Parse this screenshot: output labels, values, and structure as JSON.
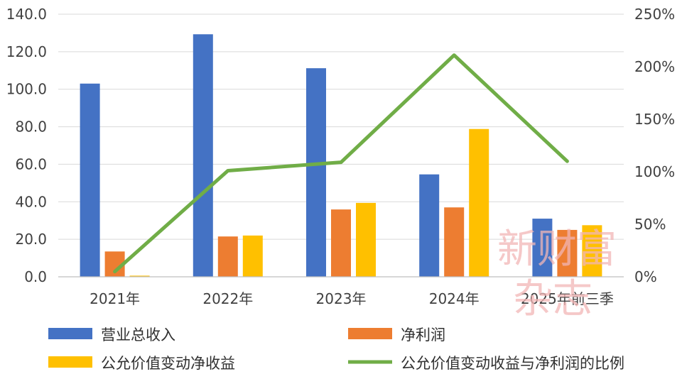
{
  "chart_data": {
    "type": "bar",
    "categories": [
      "2021年",
      "2022年",
      "2023年",
      "2024年",
      "2025年前三季"
    ],
    "series": [
      {
        "name": "营业总收入",
        "kind": "bar",
        "axis": "left",
        "color": "#4472C4",
        "values": [
          103.0,
          129.3,
          111.2,
          54.6,
          31.0
        ]
      },
      {
        "name": "净利润",
        "kind": "bar",
        "axis": "left",
        "color": "#ED7D31",
        "values": [
          13.5,
          21.5,
          35.9,
          37.0,
          25.0
        ]
      },
      {
        "name": "公允价值变动净收益",
        "kind": "bar",
        "axis": "left",
        "color": "#FFC000",
        "values": [
          0.6,
          22.0,
          39.4,
          78.8,
          27.5
        ]
      },
      {
        "name": "公允价值变动收益与净利润的比例",
        "kind": "line",
        "axis": "right",
        "color": "#70AD47",
        "values": [
          5,
          101,
          109,
          211,
          110
        ]
      }
    ],
    "ylim_left": [
      0,
      140
    ],
    "yticks_left": [
      "0.0",
      "20.0",
      "40.0",
      "60.0",
      "80.0",
      "100.0",
      "120.0",
      "140.0"
    ],
    "ylim_right": [
      0,
      250
    ],
    "yticks_right": [
      "0%",
      "50%",
      "100%",
      "150%",
      "200%",
      "250%"
    ],
    "grid": true,
    "legend_position": "bottom"
  },
  "watermark": {
    "line1": "新财富",
    "line2": "杂志"
  }
}
